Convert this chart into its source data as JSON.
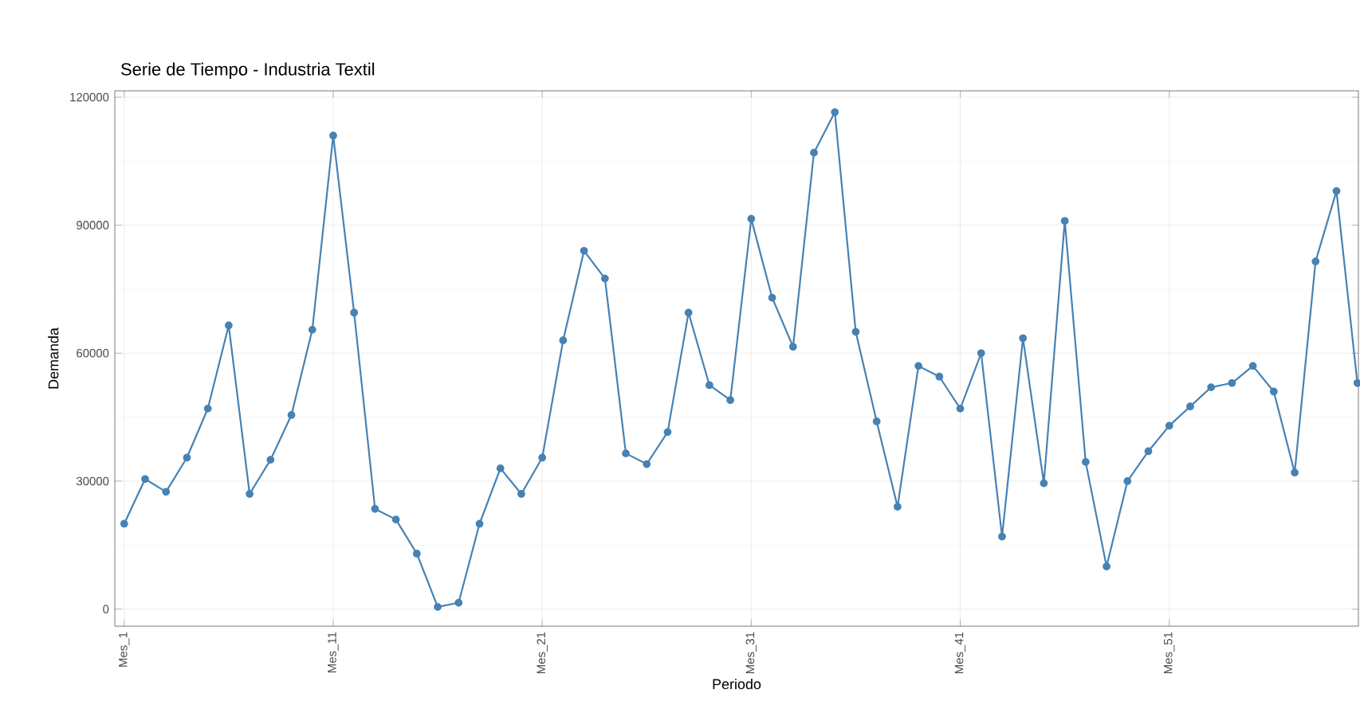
{
  "chart_data": {
    "type": "line",
    "title": "Serie de Tiempo - Industria Textil",
    "xlabel": "Periodo",
    "ylabel": "Demanda",
    "categories": [
      "Mes_1",
      null,
      null,
      null,
      null,
      null,
      null,
      null,
      null,
      null,
      "Mes_11",
      null,
      null,
      null,
      null,
      null,
      null,
      null,
      null,
      null,
      "Mes_21",
      null,
      null,
      null,
      null,
      null,
      null,
      null,
      null,
      null,
      "Mes_31",
      null,
      null,
      null,
      null,
      null,
      null,
      null,
      null,
      null,
      "Mes_41",
      null,
      null,
      null,
      null,
      null,
      null,
      null,
      null,
      null,
      "Mes_51",
      null,
      null,
      null,
      null,
      null,
      null,
      null,
      null,
      null
    ],
    "series": [
      {
        "color": "#4682b4",
        "values": [
          20000,
          30500,
          27500,
          35500,
          47000,
          66500,
          27000,
          35000,
          45500,
          65500,
          111000,
          69500,
          23500,
          21000,
          13000,
          500,
          1500,
          20000,
          33000,
          27000,
          35500,
          63000,
          84000,
          77500,
          36500,
          34000,
          41500,
          69500,
          52500,
          49000,
          91500,
          73000,
          61500,
          107000,
          116500,
          65000,
          44000,
          24000,
          57000,
          54500,
          47000,
          60000,
          17000,
          63500,
          29500,
          91000,
          34500,
          10000,
          30000,
          37000,
          43000,
          47500,
          52000,
          53000,
          57000,
          51000,
          32000,
          81500,
          98000,
          53000
        ]
      }
    ],
    "ylim": [
      -4000,
      121500
    ],
    "yticks": [
      0,
      30000,
      60000,
      90000,
      120000
    ],
    "grid": true,
    "marker": "circle",
    "line_style": "solid"
  }
}
